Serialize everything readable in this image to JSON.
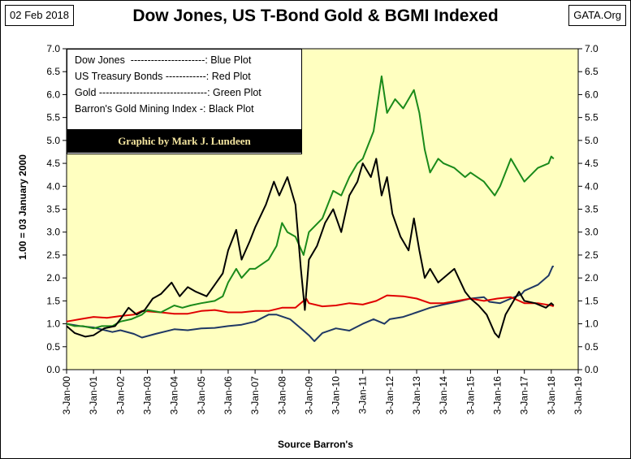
{
  "date_tag": "02 Feb 2018",
  "site_tag": "GATA.Org",
  "chart_data": {
    "type": "line",
    "title": "Dow Jones, US T-Bond Gold & BGMI Indexed",
    "ylabel": "1.00 = 03 January 2000",
    "xlabel": "Source Barron's",
    "ylim": [
      0,
      7
    ],
    "yticks": [
      "0.0",
      "0.5",
      "1.0",
      "1.5",
      "2.0",
      "2.5",
      "3.0",
      "3.5",
      "4.0",
      "4.5",
      "5.0",
      "5.5",
      "6.0",
      "6.5",
      "7.0"
    ],
    "xlim": [
      2000,
      2019
    ],
    "xticks": [
      "3-Jan-00",
      "3-Jan-01",
      "3-Jan-02",
      "3-Jan-03",
      "3-Jan-04",
      "3-Jan-05",
      "3-Jan-06",
      "3-Jan-07",
      "3-Jan-08",
      "3-Jan-09",
      "3-Jan-10",
      "3-Jan-11",
      "3-Jan-12",
      "3-Jan-13",
      "3-Jan-14",
      "3-Jan-15",
      "3-Jan-16",
      "3-Jan-17",
      "3-Jan-18",
      "3-Jan-19"
    ],
    "grid": false,
    "plot_background": "#ffffc0",
    "legend": {
      "position": "top-left",
      "entries": [
        "Dow Jones  ----------------------: Blue Plot",
        "US Treasury Bonds ------------: Red Plot",
        "Gold --------------------------------: Green Plot",
        "Barron's Gold Mining Index -: Black Plot"
      ],
      "credit": "Graphic by  Mark J. Lundeen"
    },
    "series": [
      {
        "color": "#1f3864",
        "x": [
          2000.0,
          2000.5,
          2001.0,
          2001.7,
          2002.0,
          2002.5,
          2002.8,
          2003.3,
          2004.0,
          2004.5,
          2005.0,
          2005.5,
          2006.0,
          2006.5,
          2007.0,
          2007.5,
          2007.8,
          2008.3,
          2008.8,
          2009.0,
          2009.2,
          2009.5,
          2010.0,
          2010.5,
          2011.0,
          2011.4,
          2011.8,
          2012.0,
          2012.5,
          2013.0,
          2013.5,
          2014.0,
          2014.5,
          2015.0,
          2015.5,
          2015.7,
          2016.1,
          2016.5,
          2016.9,
          2017.0,
          2017.5,
          2017.9,
          2018.05,
          2018.09
        ],
        "values": [
          1.0,
          0.95,
          0.92,
          0.82,
          0.86,
          0.78,
          0.7,
          0.78,
          0.88,
          0.86,
          0.9,
          0.91,
          0.95,
          0.98,
          1.05,
          1.2,
          1.2,
          1.1,
          0.85,
          0.75,
          0.62,
          0.8,
          0.9,
          0.85,
          1.0,
          1.1,
          1.0,
          1.1,
          1.15,
          1.25,
          1.35,
          1.42,
          1.48,
          1.55,
          1.58,
          1.48,
          1.45,
          1.55,
          1.65,
          1.72,
          1.85,
          2.05,
          2.25,
          2.25
        ]
      },
      {
        "color": "#e00000",
        "x": [
          2000.0,
          2000.5,
          2001.0,
          2001.5,
          2002.0,
          2002.5,
          2002.8,
          2003.5,
          2004.0,
          2004.5,
          2005.0,
          2005.5,
          2006.0,
          2006.5,
          2007.0,
          2007.5,
          2008.0,
          2008.5,
          2008.9,
          2009.0,
          2009.5,
          2010.0,
          2010.5,
          2011.0,
          2011.5,
          2011.9,
          2012.5,
          2013.0,
          2013.5,
          2014.0,
          2014.5,
          2015.0,
          2015.5,
          2016.0,
          2016.5,
          2017.0,
          2017.5,
          2018.0,
          2018.09
        ],
        "values": [
          1.05,
          1.1,
          1.15,
          1.13,
          1.17,
          1.2,
          1.28,
          1.25,
          1.22,
          1.22,
          1.28,
          1.3,
          1.25,
          1.25,
          1.28,
          1.28,
          1.35,
          1.35,
          1.55,
          1.45,
          1.38,
          1.4,
          1.45,
          1.42,
          1.5,
          1.62,
          1.6,
          1.55,
          1.45,
          1.45,
          1.5,
          1.55,
          1.5,
          1.55,
          1.58,
          1.45,
          1.45,
          1.4,
          1.38
        ]
      },
      {
        "color": "#1a8a1a",
        "x": [
          2000.0,
          2000.3,
          2000.6,
          2001.0,
          2001.3,
          2001.7,
          2002.0,
          2002.4,
          2002.8,
          2003.0,
          2003.5,
          2004.0,
          2004.3,
          2004.6,
          2005.0,
          2005.5,
          2005.8,
          2006.0,
          2006.3,
          2006.5,
          2006.8,
          2007.0,
          2007.5,
          2007.8,
          2008.0,
          2008.2,
          2008.5,
          2008.8,
          2009.0,
          2009.5,
          2009.9,
          2010.2,
          2010.5,
          2010.8,
          2011.0,
          2011.4,
          2011.7,
          2011.9,
          2012.2,
          2012.5,
          2012.9,
          2013.1,
          2013.3,
          2013.5,
          2013.8,
          2014.0,
          2014.4,
          2014.8,
          2015.0,
          2015.5,
          2015.9,
          2016.1,
          2016.5,
          2016.9,
          2017.0,
          2017.5,
          2017.9,
          2018.0,
          2018.09
        ],
        "values": [
          1.0,
          0.95,
          0.95,
          0.9,
          0.95,
          0.95,
          1.05,
          1.1,
          1.2,
          1.3,
          1.25,
          1.4,
          1.35,
          1.4,
          1.45,
          1.5,
          1.6,
          1.9,
          2.2,
          2.0,
          2.2,
          2.2,
          2.4,
          2.7,
          3.2,
          3.0,
          2.9,
          2.5,
          3.0,
          3.3,
          3.9,
          3.8,
          4.2,
          4.5,
          4.6,
          5.2,
          6.4,
          5.6,
          5.9,
          5.7,
          6.1,
          5.6,
          4.8,
          4.3,
          4.6,
          4.5,
          4.4,
          4.2,
          4.3,
          4.1,
          3.8,
          4.0,
          4.6,
          4.2,
          4.1,
          4.4,
          4.5,
          4.65,
          4.6
        ]
      },
      {
        "color": "#000000",
        "x": [
          2000.0,
          2000.3,
          2000.7,
          2001.0,
          2001.4,
          2001.8,
          2002.0,
          2002.3,
          2002.6,
          2002.9,
          2003.2,
          2003.5,
          2003.9,
          2004.2,
          2004.5,
          2004.8,
          2005.2,
          2005.5,
          2005.8,
          2006.0,
          2006.3,
          2006.5,
          2006.8,
          2007.0,
          2007.4,
          2007.7,
          2007.9,
          2008.2,
          2008.5,
          2008.7,
          2008.85,
          2009.0,
          2009.3,
          2009.6,
          2009.9,
          2010.2,
          2010.5,
          2010.8,
          2011.0,
          2011.3,
          2011.5,
          2011.7,
          2011.9,
          2012.1,
          2012.4,
          2012.7,
          2012.9,
          2013.1,
          2013.3,
          2013.5,
          2013.8,
          2014.0,
          2014.4,
          2014.8,
          2015.0,
          2015.3,
          2015.6,
          2015.9,
          2016.05,
          2016.3,
          2016.6,
          2016.8,
          2017.0,
          2017.4,
          2017.8,
          2018.0,
          2018.09
        ],
        "values": [
          0.95,
          0.8,
          0.72,
          0.75,
          0.9,
          0.95,
          1.1,
          1.35,
          1.2,
          1.3,
          1.55,
          1.65,
          1.9,
          1.6,
          1.8,
          1.7,
          1.6,
          1.85,
          2.1,
          2.6,
          3.05,
          2.4,
          2.8,
          3.1,
          3.6,
          4.1,
          3.8,
          4.2,
          3.6,
          2.2,
          1.3,
          2.4,
          2.7,
          3.2,
          3.5,
          3.0,
          3.8,
          4.1,
          4.5,
          4.2,
          4.6,
          3.8,
          4.2,
          3.4,
          2.9,
          2.6,
          3.3,
          2.6,
          2.0,
          2.2,
          1.9,
          2.0,
          2.2,
          1.7,
          1.55,
          1.4,
          1.2,
          0.8,
          0.7,
          1.2,
          1.5,
          1.7,
          1.5,
          1.45,
          1.35,
          1.45,
          1.4
        ]
      }
    ]
  }
}
